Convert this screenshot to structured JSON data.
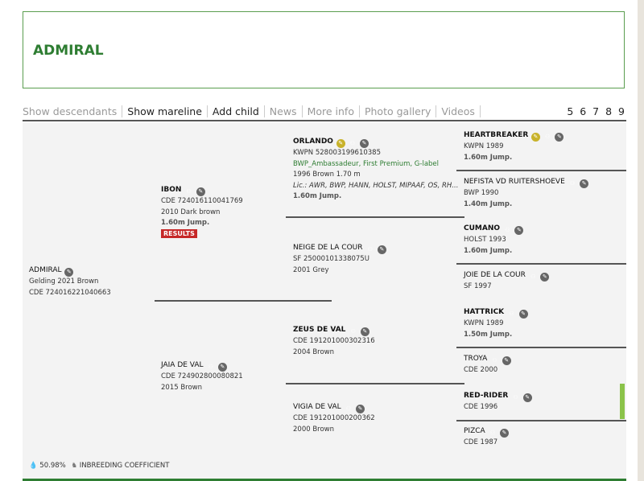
{
  "title": "ADMIRAL",
  "nav": {
    "items": [
      {
        "label": "Show descendants",
        "active": false
      },
      {
        "label": "Show mareline",
        "active": true
      },
      {
        "label": "Add child",
        "active": true
      },
      {
        "label": "News",
        "active": false
      },
      {
        "label": "More info",
        "active": false
      },
      {
        "label": "Photo gallery",
        "active": false
      },
      {
        "label": "Videos",
        "active": false
      }
    ],
    "generations": "5 6 7 8 9"
  },
  "horses": [
    {
      "id": "subject",
      "name": "ADMIRAL",
      "bold": false,
      "icons": [
        "edit"
      ],
      "lines": [
        "Gelding 2021 Brown",
        "CDE 724016221040663"
      ]
    },
    {
      "id": "sire",
      "name": "IBON",
      "bold": true,
      "icons": [
        "descendants",
        "edit"
      ],
      "lines": [
        "CDE 724016110041769",
        "2010 Dark brown"
      ],
      "perf": "1.60m Jump.",
      "results": "RESULTS"
    },
    {
      "id": "dam",
      "name": "JAIA DE VAL",
      "bold": false,
      "icons": [
        "descendants",
        "edit"
      ],
      "lines": [
        "CDE 724902800080821",
        "2015 Brown"
      ]
    },
    {
      "id": "ss",
      "name": "ORLANDO",
      "bold": true,
      "icons": [
        "key",
        "descendants",
        "edit"
      ],
      "lines": [
        "KWPN 528003199610385"
      ],
      "predicate": "BWP_Ambassadeur, First Premium, G-label",
      "lines2": [
        "1996 Brown 1.70 m"
      ],
      "lic": "Lic.: AWR, BWP, HANN, HOLST, MIPAAF, OS, RH...",
      "perf": "1.60m Jump."
    },
    {
      "id": "sd",
      "name": "NEIGE DE LA COUR",
      "bold": false,
      "icons": [
        "descendants",
        "edit"
      ],
      "lines": [
        "SF 25000101338075U",
        "2001 Grey"
      ]
    },
    {
      "id": "ds",
      "name": "ZEUS DE VAL",
      "bold": true,
      "icons": [
        "descendants",
        "edit"
      ],
      "lines": [
        "CDE 191201000302316",
        "2004 Brown"
      ]
    },
    {
      "id": "dd",
      "name": "VIGIA DE VAL",
      "bold": false,
      "icons": [
        "descendants",
        "edit"
      ],
      "lines": [
        "CDE 191201000200362",
        "2000 Brown"
      ]
    },
    {
      "id": "sss",
      "name": "HEARTBREAKER",
      "bold": true,
      "icons": [
        "key",
        "descendants",
        "edit"
      ],
      "lines": [
        "KWPN 1989"
      ],
      "perf": "1.60m Jump."
    },
    {
      "id": "ssd",
      "name": "NEFISTA VD RUITERSHOEVE",
      "bold": false,
      "icons": [
        "descendants",
        "edit"
      ],
      "lines": [
        "BWP 1990"
      ],
      "perf": "1.40m Jump."
    },
    {
      "id": "sds",
      "name": "CUMANO",
      "bold": true,
      "icons": [
        "descendants",
        "edit"
      ],
      "lines": [
        "HOLST 1993"
      ],
      "perf": "1.60m Jump."
    },
    {
      "id": "sdd",
      "name": "JOIE DE LA COUR",
      "bold": false,
      "icons": [
        "descendants",
        "edit"
      ],
      "lines": [
        "SF 1997"
      ]
    },
    {
      "id": "dss",
      "name": "HATTRICK",
      "bold": true,
      "icons": [
        "descendants",
        "edit"
      ],
      "lines": [
        "KWPN 1989"
      ],
      "perf": "1.50m Jump."
    },
    {
      "id": "dsd",
      "name": "TROYA",
      "bold": false,
      "icons": [
        "descendants",
        "edit"
      ],
      "lines": [
        "CDE 2000"
      ]
    },
    {
      "id": "dds",
      "name": "RED-RIDER",
      "bold": true,
      "icons": [
        "descendants",
        "edit"
      ],
      "lines": [
        "CDE 1996"
      ]
    },
    {
      "id": "ddd",
      "name": "PIZCA",
      "bold": false,
      "icons": [
        "descendants",
        "edit"
      ],
      "lines": [
        "CDE 1987"
      ]
    }
  ],
  "footer": {
    "percentage": "50.98%",
    "label": "INBREEDING COEFFICIENT"
  },
  "colors": {
    "brand_green": "#2e7d32",
    "key_icon": "#c8b22a",
    "results_badge": "#c62828",
    "highlight_bar": "#8bc34a"
  }
}
